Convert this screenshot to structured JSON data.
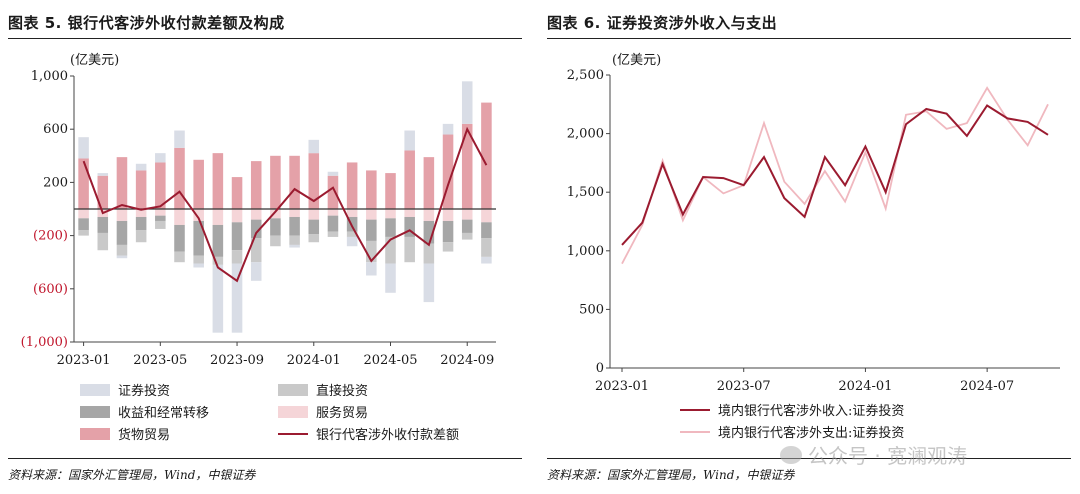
{
  "left": {
    "title": "图表 5. 银行代客涉外收付款差额及构成",
    "source": "资料来源：国家外汇管理局，Wind，中银证券",
    "chart_data": {
      "type": "bar",
      "stacked": true,
      "unit_label": "(亿美元)",
      "ylim": [
        -1000,
        1000
      ],
      "yticks": [
        1000,
        600,
        200,
        -200,
        -600,
        -1000
      ],
      "ytick_labels": [
        "1,000",
        "600",
        "200",
        "(200)",
        "(600)",
        "(1,000)"
      ],
      "categories": [
        "2023-01",
        "2023-02",
        "2023-03",
        "2023-04",
        "2023-05",
        "2023-06",
        "2023-07",
        "2023-08",
        "2023-09",
        "2023-10",
        "2023-11",
        "2023-12",
        "2024-01",
        "2024-02",
        "2024-03",
        "2024-04",
        "2024-05",
        "2024-06",
        "2024-07",
        "2024-08",
        "2024-09",
        "2024-10"
      ],
      "xtick_labels": [
        "2023-01",
        "2023-05",
        "2023-09",
        "2024-01",
        "2024-05",
        "2024-09"
      ],
      "xtick_indices": [
        0,
        4,
        8,
        12,
        16,
        20
      ],
      "series": [
        {
          "name": "货物贸易",
          "role": "goods",
          "color": "#e4a1a8",
          "values": [
            380,
            250,
            390,
            290,
            350,
            460,
            370,
            420,
            240,
            360,
            400,
            400,
            420,
            250,
            350,
            290,
            270,
            440,
            390,
            560,
            640,
            800
          ]
        },
        {
          "name": "服务贸易",
          "role": "services",
          "color": "#f5d5d8",
          "values": [
            -70,
            -60,
            -90,
            -60,
            -50,
            -120,
            -90,
            -120,
            -100,
            -80,
            -70,
            -60,
            -80,
            -50,
            -60,
            -80,
            -70,
            -60,
            -90,
            -90,
            -80,
            -100
          ]
        },
        {
          "name": "收益和经常转移",
          "role": "income",
          "color": "#a6a6a6",
          "values": [
            -90,
            -120,
            -180,
            -100,
            -40,
            -200,
            -260,
            -240,
            -210,
            -140,
            -130,
            -140,
            -110,
            -120,
            -110,
            -160,
            -140,
            -150,
            -170,
            -160,
            -100,
            -120
          ]
        },
        {
          "name": "直接投资",
          "role": "fdi",
          "color": "#c9c9c9",
          "values": [
            -40,
            -130,
            -80,
            -90,
            -60,
            -80,
            -60,
            -60,
            -100,
            -180,
            -80,
            -70,
            -60,
            -40,
            -40,
            -160,
            -200,
            -190,
            -150,
            -70,
            -50,
            -140
          ]
        },
        {
          "name": "证券投资",
          "role": "portfolio",
          "color": "#d9dde6",
          "values": [
            160,
            20,
            -20,
            50,
            70,
            130,
            -30,
            -510,
            -520,
            -140,
            0,
            -20,
            100,
            30,
            -70,
            -100,
            -220,
            150,
            -290,
            80,
            320,
            -50
          ]
        },
        {
          "name": "银行代客涉外收付款差额",
          "role": "net",
          "type": "line",
          "color": "#9b1b30",
          "values": [
            360,
            -30,
            30,
            -5,
            20,
            130,
            -70,
            -440,
            -540,
            -180,
            -20,
            150,
            60,
            160,
            -130,
            -390,
            -230,
            -160,
            -270,
            180,
            600,
            330
          ]
        }
      ]
    },
    "legend": [
      {
        "label": "证券投资",
        "color": "#d9dde6",
        "kind": "box"
      },
      {
        "label": "直接投资",
        "color": "#c9c9c9",
        "kind": "box"
      },
      {
        "label": "收益和经常转移",
        "color": "#a6a6a6",
        "kind": "box"
      },
      {
        "label": "服务贸易",
        "color": "#f5d5d8",
        "kind": "box"
      },
      {
        "label": "货物贸易",
        "color": "#e4a1a8",
        "kind": "box"
      },
      {
        "label": "银行代客涉外收付款差额",
        "color": "#9b1b30",
        "kind": "line"
      }
    ]
  },
  "right": {
    "title": "图表 6. 证券投资涉外收入与支出",
    "source": "资料来源：国家外汇管理局，Wind，中银证券",
    "watermark": "公众号 · 宽澜观涛",
    "chart_data": {
      "type": "line",
      "unit_label": "(亿美元)",
      "ylim": [
        0,
        2500
      ],
      "yticks": [
        0,
        500,
        1000,
        1500,
        2000,
        2500
      ],
      "ytick_labels": [
        "0",
        "500",
        "1,000",
        "1,500",
        "2,000",
        "2,500"
      ],
      "x": [
        "2023-01",
        "2023-02",
        "2023-03",
        "2023-04",
        "2023-05",
        "2023-06",
        "2023-07",
        "2023-08",
        "2023-09",
        "2023-10",
        "2023-11",
        "2023-12",
        "2024-01",
        "2024-02",
        "2024-03",
        "2024-04",
        "2024-05",
        "2024-06",
        "2024-07",
        "2024-08",
        "2024-09",
        "2024-10"
      ],
      "xtick_labels": [
        "2023-01",
        "2023-07",
        "2024-01",
        "2024-07"
      ],
      "xtick_indices": [
        0,
        6,
        12,
        18
      ],
      "series": [
        {
          "name": "境内银行代客涉外收入:证券投资",
          "color": "#9b1b30",
          "values": [
            1050,
            1240,
            1740,
            1310,
            1630,
            1620,
            1560,
            1800,
            1450,
            1290,
            1800,
            1560,
            1890,
            1500,
            2080,
            2210,
            2170,
            1980,
            2240,
            2130,
            2100,
            1990
          ]
        },
        {
          "name": "境内银行代客涉外支出:证券投资",
          "color": "#f0b8bf",
          "values": [
            890,
            1220,
            1770,
            1260,
            1630,
            1490,
            1560,
            2090,
            1590,
            1400,
            1680,
            1420,
            1840,
            1360,
            2160,
            2190,
            2040,
            2090,
            2390,
            2120,
            1900,
            2250
          ]
        }
      ]
    }
  }
}
